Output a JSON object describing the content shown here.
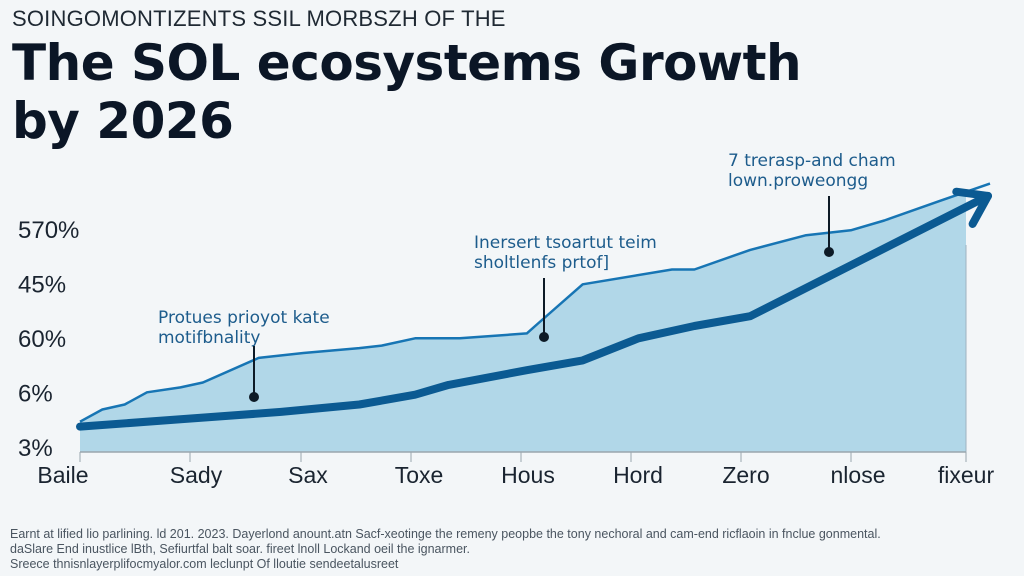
{
  "header": {
    "eyebrow": "SOINGOMONTIZENTS SSIL MORBSZH OF THE",
    "title_line1": "The SOL ecosystems Growth",
    "title_line2": "by 2026"
  },
  "colors": {
    "fill": "#b1d7e8",
    "upper_line": "#1775b4",
    "trend_line": "#0b5a92",
    "text_dark": "#0b1626",
    "annotation": "#1d5c8c"
  },
  "chart_data": {
    "type": "area",
    "title": "The SOL ecosystems Growth by 2026",
    "xlabel": "",
    "ylabel": "",
    "y_tick_labels": [
      "570%",
      "45%",
      "60%",
      "6%",
      "3%"
    ],
    "categories": [
      "Baile",
      "Sady",
      "Sax",
      "Toxe",
      "Hous",
      "Hord",
      "Zero",
      "nlose",
      "fixeur"
    ],
    "ylim": [
      0,
      4.4
    ],
    "grid": false,
    "legend": "none",
    "series": [
      {
        "name": "upper-area",
        "style": "thin-line-with-fill",
        "x": [
          0,
          0.2,
          0.4,
          0.6,
          0.9,
          1.1,
          1.6,
          2.0,
          2.5,
          2.7,
          3.0,
          3.4,
          4.0,
          4.1,
          4.5,
          5.3,
          5.5,
          6.0,
          6.5,
          6.9,
          7.2,
          7.7,
          8.2
        ],
        "y": [
          0.25,
          0.5,
          0.6,
          0.85,
          0.95,
          1.05,
          1.55,
          1.65,
          1.75,
          1.8,
          1.95,
          1.95,
          2.05,
          2.25,
          3.05,
          3.35,
          3.35,
          3.75,
          4.05,
          4.15,
          4.35,
          4.75,
          5.1
        ]
      },
      {
        "name": "trend-arrow",
        "style": "thick-line-arrow",
        "x": [
          0,
          0.9,
          1.8,
          2.5,
          3.0,
          3.3,
          4.0,
          4.5,
          5.0,
          5.5,
          6.0,
          7.0,
          8.2
        ],
        "y": [
          0.15,
          0.3,
          0.45,
          0.6,
          0.8,
          1.0,
          1.3,
          1.5,
          1.95,
          2.2,
          2.4,
          3.55,
          4.85
        ]
      }
    ],
    "annotations": [
      {
        "line1": "Protues prioyot kate",
        "line2": "motifbnality",
        "x": 1.4,
        "y": 1.05
      },
      {
        "line1": "Inersert tsoartut teim",
        "line2": "sholtlenfs prtof]",
        "x": 3.55,
        "y": 2.25
      },
      {
        "line1": "7 trerasp-and cham",
        "line2": "lown.proweongg",
        "x": 5.8,
        "y": 3.75
      }
    ]
  },
  "footnote": {
    "line1": "Earnt at lified lio parlining. ld 201. 2023. Dayerlond anount.atn Sacf-xeotinge the remeny peopbe the tony nechoral and cam-end ricflaoin in fnclue gonmental.",
    "line2": "daSlare End inustlice lBth, Sefiurtfal balt soar. fireet lnoll Lockand oeil the ignarmer.",
    "line3": "Sreece thnisnlayerplifocmyalor.com leclunpt Of lloutie sendeetalusreet"
  }
}
